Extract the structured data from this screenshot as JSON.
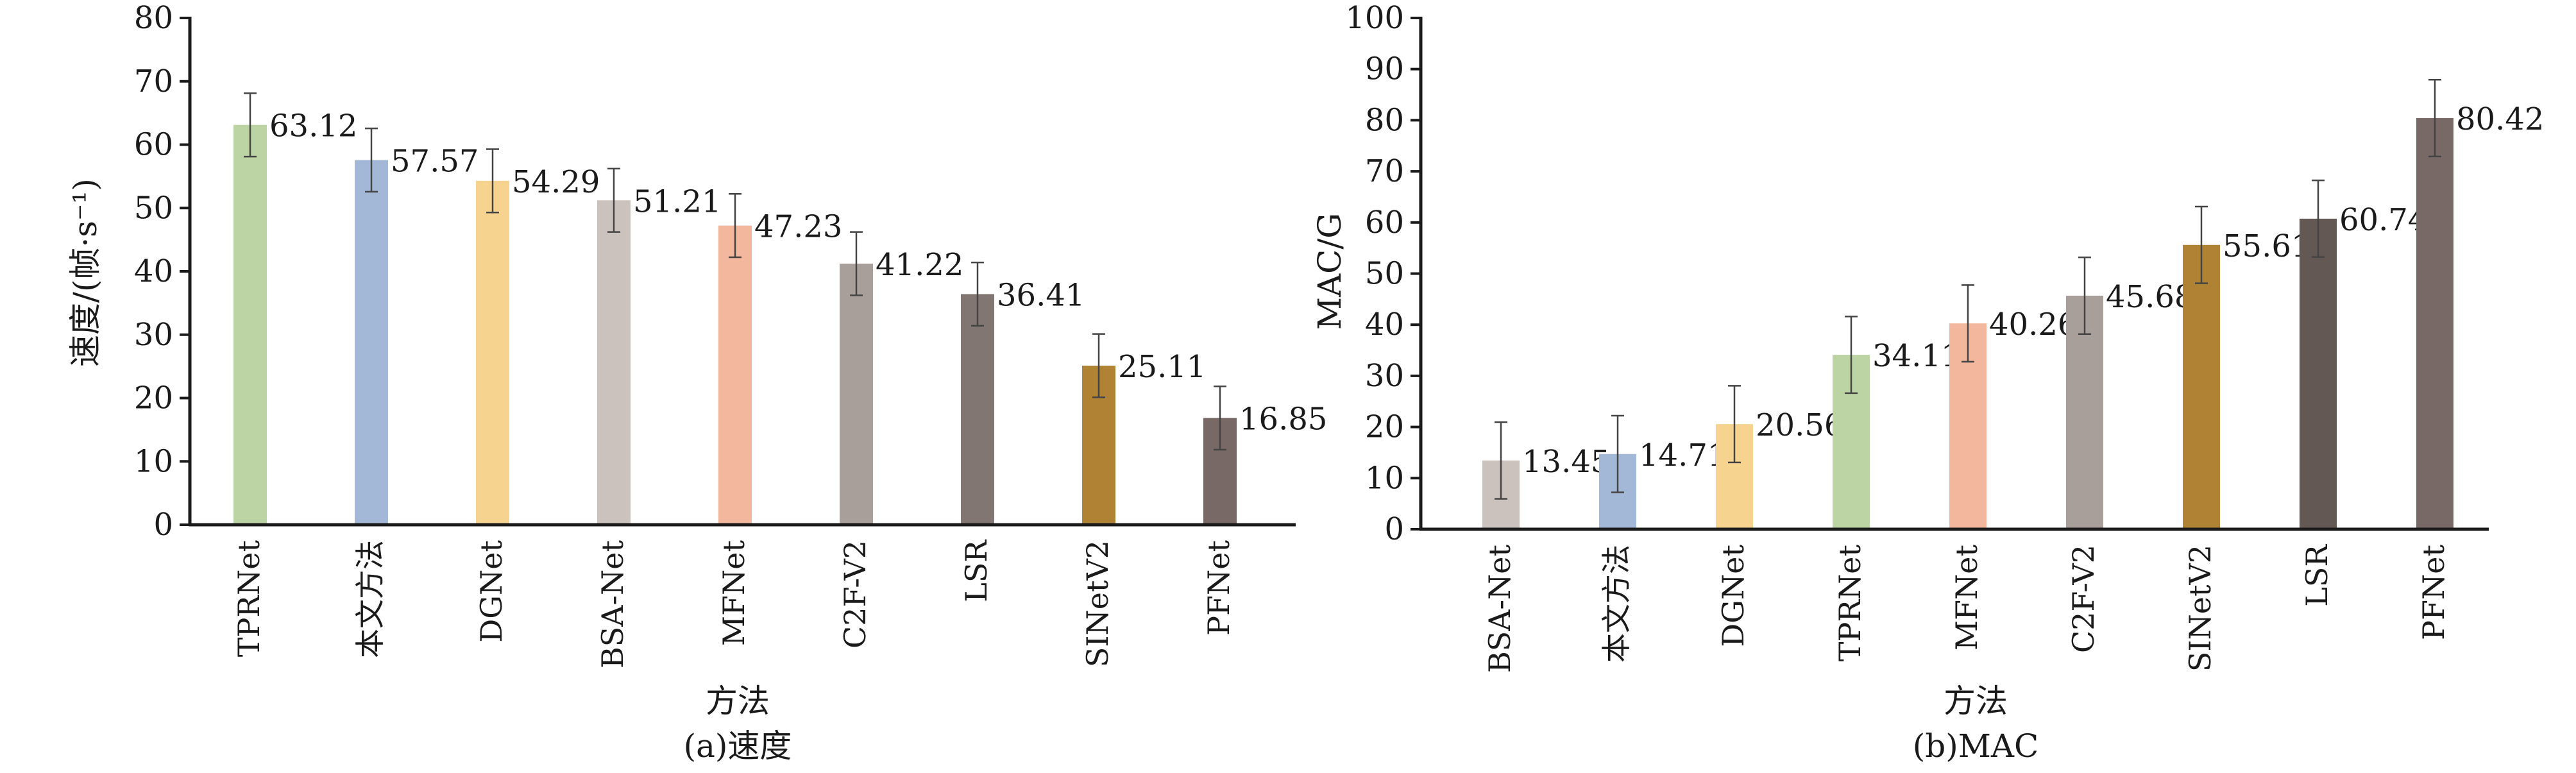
{
  "chart_data": [
    {
      "type": "bar",
      "caption": "(a)速度",
      "xlabel": "方法",
      "ylabel": "速度/(帧·s⁻¹)",
      "ylim": [
        0,
        80
      ],
      "yticks": [
        0,
        10,
        20,
        30,
        40,
        50,
        60,
        70,
        80
      ],
      "categories": [
        "TPRNet",
        "本文方法",
        "DGNet",
        "BSA-Net",
        "MFNet",
        "C2F-V2",
        "LSR",
        "SINetV2",
        "PFNet"
      ],
      "values": [
        63.12,
        57.57,
        54.29,
        51.21,
        47.23,
        41.22,
        36.41,
        25.11,
        16.85
      ],
      "value_labels": [
        "63.12",
        "57.57",
        "54.29",
        "51.21",
        "47.23",
        "41.22",
        "36.41",
        "25.11",
        "16.85"
      ],
      "error": [
        5,
        5,
        5,
        5,
        5,
        5,
        5,
        5,
        5
      ],
      "colors": [
        "#bcd4a3",
        "#a3b8d6",
        "#f6d48f",
        "#cbc2bd",
        "#f2b79c",
        "#a89e9a",
        "#827672",
        "#af8234",
        "#786866"
      ]
    },
    {
      "type": "bar",
      "caption": "(b)MAC",
      "xlabel": "方法",
      "ylabel": "MAC/G",
      "ylim": [
        0,
        100
      ],
      "yticks": [
        0,
        10,
        20,
        30,
        40,
        50,
        60,
        70,
        80,
        90,
        100
      ],
      "categories": [
        "BSA-Net",
        "本文方法",
        "DGNet",
        "TPRNet",
        "MFNet",
        "C2F-V2",
        "SINetV2",
        "LSR",
        "PFNet"
      ],
      "values": [
        13.45,
        14.71,
        20.56,
        34.11,
        40.26,
        45.68,
        55.61,
        60.74,
        80.42
      ],
      "value_labels": [
        "13.45",
        "14.71",
        "20.56",
        "34.11",
        "40.26",
        "45.68",
        "55.61",
        "60.74",
        "80.42"
      ],
      "error": [
        7.5,
        7.5,
        7.5,
        7.5,
        7.5,
        7.5,
        7.5,
        7.5,
        7.5
      ],
      "colors": [
        "#cbc2bd",
        "#a3b8d6",
        "#f6d48f",
        "#bcd4a3",
        "#f2b79c",
        "#a89e9a",
        "#af8234",
        "#645855",
        "#786866"
      ]
    }
  ]
}
